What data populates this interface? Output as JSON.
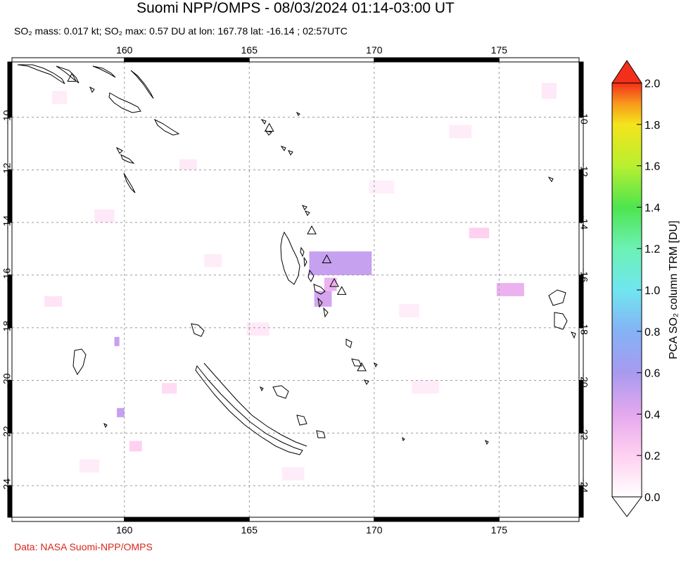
{
  "header": {
    "title": "Suomi NPP/OMPS - 08/03/2024 01:14-03:00 UT",
    "subtitle": "SO₂ mass: 0.017 kt; SO₂ max: 0.57 DU at lon: 167.78 lat: -16.14 ; 02:57UTC"
  },
  "footer": {
    "credit": "Data: NASA Suomi-NPP/OMPS"
  },
  "colors": {
    "coastline": "#000000",
    "grid": "#9a9a9a",
    "credit": "#d8261c",
    "so2_low": "#fbd9f0",
    "so2_mid": "#c9a4f4"
  },
  "chart_data": {
    "type": "heatmap",
    "projection": "equirectangular map",
    "xlim": [
      155.5,
      178.2
    ],
    "ylim": [
      -25.2,
      -7.9
    ],
    "x_ticks": [
      160,
      165,
      170,
      175
    ],
    "x_tick_labels": [
      "160",
      "165",
      "170",
      "175"
    ],
    "y_ticks": [
      -10,
      -12,
      -14,
      -16,
      -18,
      -20,
      -22,
      -24
    ],
    "y_tick_labels": [
      "-10",
      "-12",
      "-14",
      "-16",
      "-18",
      "-20",
      "-22",
      "-24"
    ],
    "grid": true,
    "max_point": {
      "lon": 167.78,
      "lat": -16.14,
      "value": 0.57
    },
    "volcanoes": [
      {
        "lon": 157.9,
        "lat": -8.5
      },
      {
        "lon": 165.8,
        "lat": -10.4
      },
      {
        "lon": 167.5,
        "lat": -14.3
      },
      {
        "lon": 168.1,
        "lat": -15.4
      },
      {
        "lon": 168.4,
        "lat": -16.3
      },
      {
        "lon": 168.7,
        "lat": -16.6
      },
      {
        "lon": 169.5,
        "lat": -19.5
      }
    ],
    "so2_cells": [
      {
        "lon": 167.4,
        "lat": -16.0,
        "w": 2.5,
        "h": 0.9,
        "value": 0.5
      },
      {
        "lon": 167.6,
        "lat": -17.2,
        "w": 0.7,
        "h": 0.6,
        "value": 0.45
      },
      {
        "lon": 168.0,
        "lat": -16.6,
        "w": 0.5,
        "h": 0.5,
        "value": 0.35
      },
      {
        "lon": 159.6,
        "lat": -18.7,
        "w": 0.2,
        "h": 0.35,
        "value": 0.5
      },
      {
        "lon": 159.7,
        "lat": -21.4,
        "w": 0.3,
        "h": 0.35,
        "value": 0.5
      },
      {
        "lon": 174.9,
        "lat": -16.8,
        "w": 1.1,
        "h": 0.5,
        "value": 0.35
      },
      {
        "lon": 173.8,
        "lat": -14.6,
        "w": 0.8,
        "h": 0.4,
        "value": 0.2
      },
      {
        "lon": 160.2,
        "lat": -22.7,
        "w": 0.5,
        "h": 0.4,
        "value": 0.2
      },
      {
        "lon": 161.5,
        "lat": -20.5,
        "w": 0.6,
        "h": 0.4,
        "value": 0.15
      },
      {
        "lon": 156.8,
        "lat": -17.2,
        "w": 0.7,
        "h": 0.4,
        "value": 0.12
      },
      {
        "lon": 158.8,
        "lat": -14.0,
        "w": 0.8,
        "h": 0.5,
        "value": 0.1
      },
      {
        "lon": 162.2,
        "lat": -12.0,
        "w": 0.7,
        "h": 0.4,
        "value": 0.1
      },
      {
        "lon": 164.9,
        "lat": -18.3,
        "w": 0.9,
        "h": 0.5,
        "value": 0.1
      },
      {
        "lon": 171.5,
        "lat": -20.5,
        "w": 1.1,
        "h": 0.5,
        "value": 0.08
      },
      {
        "lon": 173.0,
        "lat": -10.8,
        "w": 0.9,
        "h": 0.5,
        "value": 0.08
      },
      {
        "lon": 176.7,
        "lat": -9.3,
        "w": 0.6,
        "h": 0.6,
        "value": 0.1
      },
      {
        "lon": 158.2,
        "lat": -23.5,
        "w": 0.8,
        "h": 0.5,
        "value": 0.08
      },
      {
        "lon": 166.3,
        "lat": -23.8,
        "w": 0.9,
        "h": 0.5,
        "value": 0.08
      },
      {
        "lon": 169.8,
        "lat": -12.9,
        "w": 1.0,
        "h": 0.5,
        "value": 0.07
      },
      {
        "lon": 157.1,
        "lat": -9.5,
        "w": 0.6,
        "h": 0.5,
        "value": 0.08
      },
      {
        "lon": 163.2,
        "lat": -15.7,
        "w": 0.7,
        "h": 0.5,
        "value": 0.08
      },
      {
        "lon": 171.0,
        "lat": -17.6,
        "w": 0.8,
        "h": 0.5,
        "value": 0.08
      }
    ],
    "colorbar": {
      "label": "PCA SO₂ column TRM [DU]",
      "min": 0.0,
      "max": 2.0,
      "tick_values": [
        0.0,
        0.2,
        0.4,
        0.6,
        0.8,
        1.0,
        1.2,
        1.4,
        1.6,
        1.8,
        2.0
      ],
      "tick_labels": [
        "0.0",
        "0.2",
        "0.4",
        "0.6",
        "0.8",
        "1.0",
        "1.2",
        "1.4",
        "1.6",
        "1.8",
        "2.0"
      ],
      "stops": [
        {
          "value": 0.0,
          "color": "#ffffff"
        },
        {
          "value": 0.2,
          "color": "#ffd0f0"
        },
        {
          "value": 0.4,
          "color": "#e4a8ee"
        },
        {
          "value": 0.6,
          "color": "#a89af0"
        },
        {
          "value": 0.8,
          "color": "#84b2f5"
        },
        {
          "value": 1.0,
          "color": "#70e6f0"
        },
        {
          "value": 1.2,
          "color": "#6cf2b4"
        },
        {
          "value": 1.4,
          "color": "#4ee44e"
        },
        {
          "value": 1.6,
          "color": "#b8f030"
        },
        {
          "value": 1.8,
          "color": "#f4e41c"
        },
        {
          "value": 1.9,
          "color": "#f89a1c"
        },
        {
          "value": 2.0,
          "color": "#f2301a"
        }
      ]
    }
  }
}
